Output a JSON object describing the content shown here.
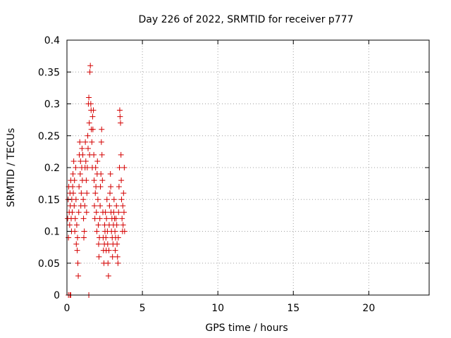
{
  "chart_data": {
    "type": "scatter",
    "title": "Day 226 of 2022, SRMTID for receiver p777",
    "xlabel": "GPS time / hours",
    "ylabel": "SRMTID / TECUs",
    "xlim": [
      0,
      24
    ],
    "ylim": [
      0,
      0.4
    ],
    "grid": true,
    "marker": "+",
    "color": "#d40000",
    "x_ticks": [
      {
        "value": 0,
        "label": "0"
      },
      {
        "value": 5,
        "label": "5"
      },
      {
        "value": 10,
        "label": "10"
      },
      {
        "value": 15,
        "label": "15"
      },
      {
        "value": 20,
        "label": "20"
      }
    ],
    "y_ticks": [
      {
        "value": 0,
        "label": "0"
      },
      {
        "value": 0.05,
        "label": "0.05"
      },
      {
        "value": 0.1,
        "label": "0.1"
      },
      {
        "value": 0.15,
        "label": "0.15"
      },
      {
        "value": 0.2,
        "label": "0.2"
      },
      {
        "value": 0.25,
        "label": "0.25"
      },
      {
        "value": 0.3,
        "label": "0.3"
      },
      {
        "value": 0.35,
        "label": "0.35"
      },
      {
        "value": 0.4,
        "label": "0.4"
      }
    ],
    "series": [
      {
        "name": "p777",
        "points": [
          [
            0.05,
            0.12
          ],
          [
            0.08,
            0.15
          ],
          [
            0.1,
            0.09
          ],
          [
            0.12,
            0.17
          ],
          [
            0.15,
            0.13
          ],
          [
            0.18,
            0.11
          ],
          [
            0.2,
            0.16
          ],
          [
            0.22,
            0.14
          ],
          [
            0.25,
            0.18
          ],
          [
            0.28,
            0.12
          ],
          [
            0.3,
            0.1
          ],
          [
            0.32,
            0.15
          ],
          [
            0.35,
            0.13
          ],
          [
            0.38,
            0.17
          ],
          [
            0.4,
            0.19
          ],
          [
            0.42,
            0.16
          ],
          [
            0.45,
            0.21
          ],
          [
            0.48,
            0.14
          ],
          [
            0.5,
            0.18
          ],
          [
            0.52,
            0.1
          ],
          [
            0.55,
            0.12
          ],
          [
            0.58,
            0.2
          ],
          [
            0.6,
            0.15
          ],
          [
            0.62,
            0.08
          ],
          [
            0.65,
            0.11
          ],
          [
            0.68,
            0.07
          ],
          [
            0.7,
            0.09
          ],
          [
            0.72,
            0.05
          ],
          [
            0.75,
            0.03
          ],
          [
            0.78,
            0.13
          ],
          [
            0.8,
            0.17
          ],
          [
            0.82,
            0.22
          ],
          [
            0.85,
            0.24
          ],
          [
            0.88,
            0.19
          ],
          [
            0.9,
            0.21
          ],
          [
            0.92,
            0.14
          ],
          [
            0.95,
            0.16
          ],
          [
            0.98,
            0.2
          ],
          [
            1.0,
            0.23
          ],
          [
            1.02,
            0.18
          ],
          [
            1.05,
            0.22
          ],
          [
            1.08,
            0.15
          ],
          [
            1.1,
            0.12
          ],
          [
            1.12,
            0.09
          ],
          [
            1.15,
            0.1
          ],
          [
            1.18,
            0.14
          ],
          [
            1.2,
            0.2
          ],
          [
            1.22,
            0.24
          ],
          [
            1.25,
            0.21
          ],
          [
            1.28,
            0.18
          ],
          [
            1.3,
            0.13
          ],
          [
            1.32,
            0.16
          ],
          [
            1.35,
            0.2
          ],
          [
            1.38,
            0.25
          ],
          [
            1.4,
            0.23
          ],
          [
            1.42,
            0.3
          ],
          [
            1.45,
            0.31
          ],
          [
            1.48,
            0.27
          ],
          [
            1.5,
            0.22
          ],
          [
            1.52,
            0.35
          ],
          [
            1.55,
            0.36
          ],
          [
            1.58,
            0.3
          ],
          [
            1.6,
            0.29
          ],
          [
            1.62,
            0.26
          ],
          [
            1.65,
            0.24
          ],
          [
            1.68,
            0.2
          ],
          [
            1.7,
            0.28
          ],
          [
            1.72,
            0.26
          ],
          [
            1.75,
            0.29
          ],
          [
            1.78,
            0.22
          ],
          [
            1.8,
            0.18
          ],
          [
            1.82,
            0.14
          ],
          [
            1.85,
            0.12
          ],
          [
            1.88,
            0.16
          ],
          [
            1.9,
            0.2
          ],
          [
            1.92,
            0.17
          ],
          [
            1.95,
            0.13
          ],
          [
            1.98,
            0.1
          ],
          [
            2.0,
            0.19
          ],
          [
            2.02,
            0.21
          ],
          [
            2.05,
            0.15
          ],
          [
            2.08,
            0.11
          ],
          [
            2.1,
            0.08
          ],
          [
            2.12,
            0.06
          ],
          [
            2.15,
            0.09
          ],
          [
            2.18,
            0.12
          ],
          [
            2.2,
            0.14
          ],
          [
            2.22,
            0.17
          ],
          [
            2.25,
            0.19
          ],
          [
            2.28,
            0.24
          ],
          [
            2.3,
            0.26
          ],
          [
            2.32,
            0.22
          ],
          [
            2.35,
            0.18
          ],
          [
            2.38,
            0.13
          ],
          [
            2.4,
            0.09
          ],
          [
            2.42,
            0.07
          ],
          [
            2.45,
            0.05
          ],
          [
            2.48,
            0.08
          ],
          [
            2.5,
            0.11
          ],
          [
            2.52,
            0.1
          ],
          [
            2.55,
            0.13
          ],
          [
            2.58,
            0.09
          ],
          [
            2.6,
            0.07
          ],
          [
            2.62,
            0.12
          ],
          [
            2.65,
            0.15
          ],
          [
            2.68,
            0.1
          ],
          [
            2.7,
            0.08
          ],
          [
            2.72,
            0.05
          ],
          [
            2.75,
            0.03
          ],
          [
            2.78,
            0.07
          ],
          [
            2.8,
            0.11
          ],
          [
            2.82,
            0.14
          ],
          [
            2.85,
            0.16
          ],
          [
            2.88,
            0.19
          ],
          [
            2.9,
            0.17
          ],
          [
            2.92,
            0.13
          ],
          [
            2.95,
            0.1
          ],
          [
            2.98,
            0.12
          ],
          [
            3.0,
            0.09
          ],
          [
            3.02,
            0.06
          ],
          [
            3.05,
            0.08
          ],
          [
            3.08,
            0.11
          ],
          [
            3.1,
            0.13
          ],
          [
            3.12,
            0.15
          ],
          [
            3.15,
            0.12
          ],
          [
            3.18,
            0.1
          ],
          [
            3.2,
            0.07
          ],
          [
            3.22,
            0.09
          ],
          [
            3.25,
            0.12
          ],
          [
            3.28,
            0.14
          ],
          [
            3.3,
            0.11
          ],
          [
            3.32,
            0.08
          ],
          [
            3.35,
            0.06
          ],
          [
            3.38,
            0.05
          ],
          [
            3.4,
            0.09
          ],
          [
            3.42,
            0.13
          ],
          [
            3.45,
            0.17
          ],
          [
            3.48,
            0.2
          ],
          [
            3.5,
            0.29
          ],
          [
            3.52,
            0.28
          ],
          [
            3.55,
            0.27
          ],
          [
            3.58,
            0.22
          ],
          [
            3.6,
            0.18
          ],
          [
            3.62,
            0.15
          ],
          [
            3.65,
            0.12
          ],
          [
            3.68,
            0.1
          ],
          [
            3.7,
            0.14
          ],
          [
            3.72,
            0.11
          ],
          [
            3.75,
            0.16
          ],
          [
            3.78,
            0.13
          ],
          [
            3.8,
            0.2
          ],
          [
            3.82,
            0.1
          ],
          [
            0.1,
            0.0
          ],
          [
            0.2,
            0.0
          ],
          [
            0.25,
            0.0
          ],
          [
            1.45,
            0.0
          ]
        ]
      }
    ]
  }
}
